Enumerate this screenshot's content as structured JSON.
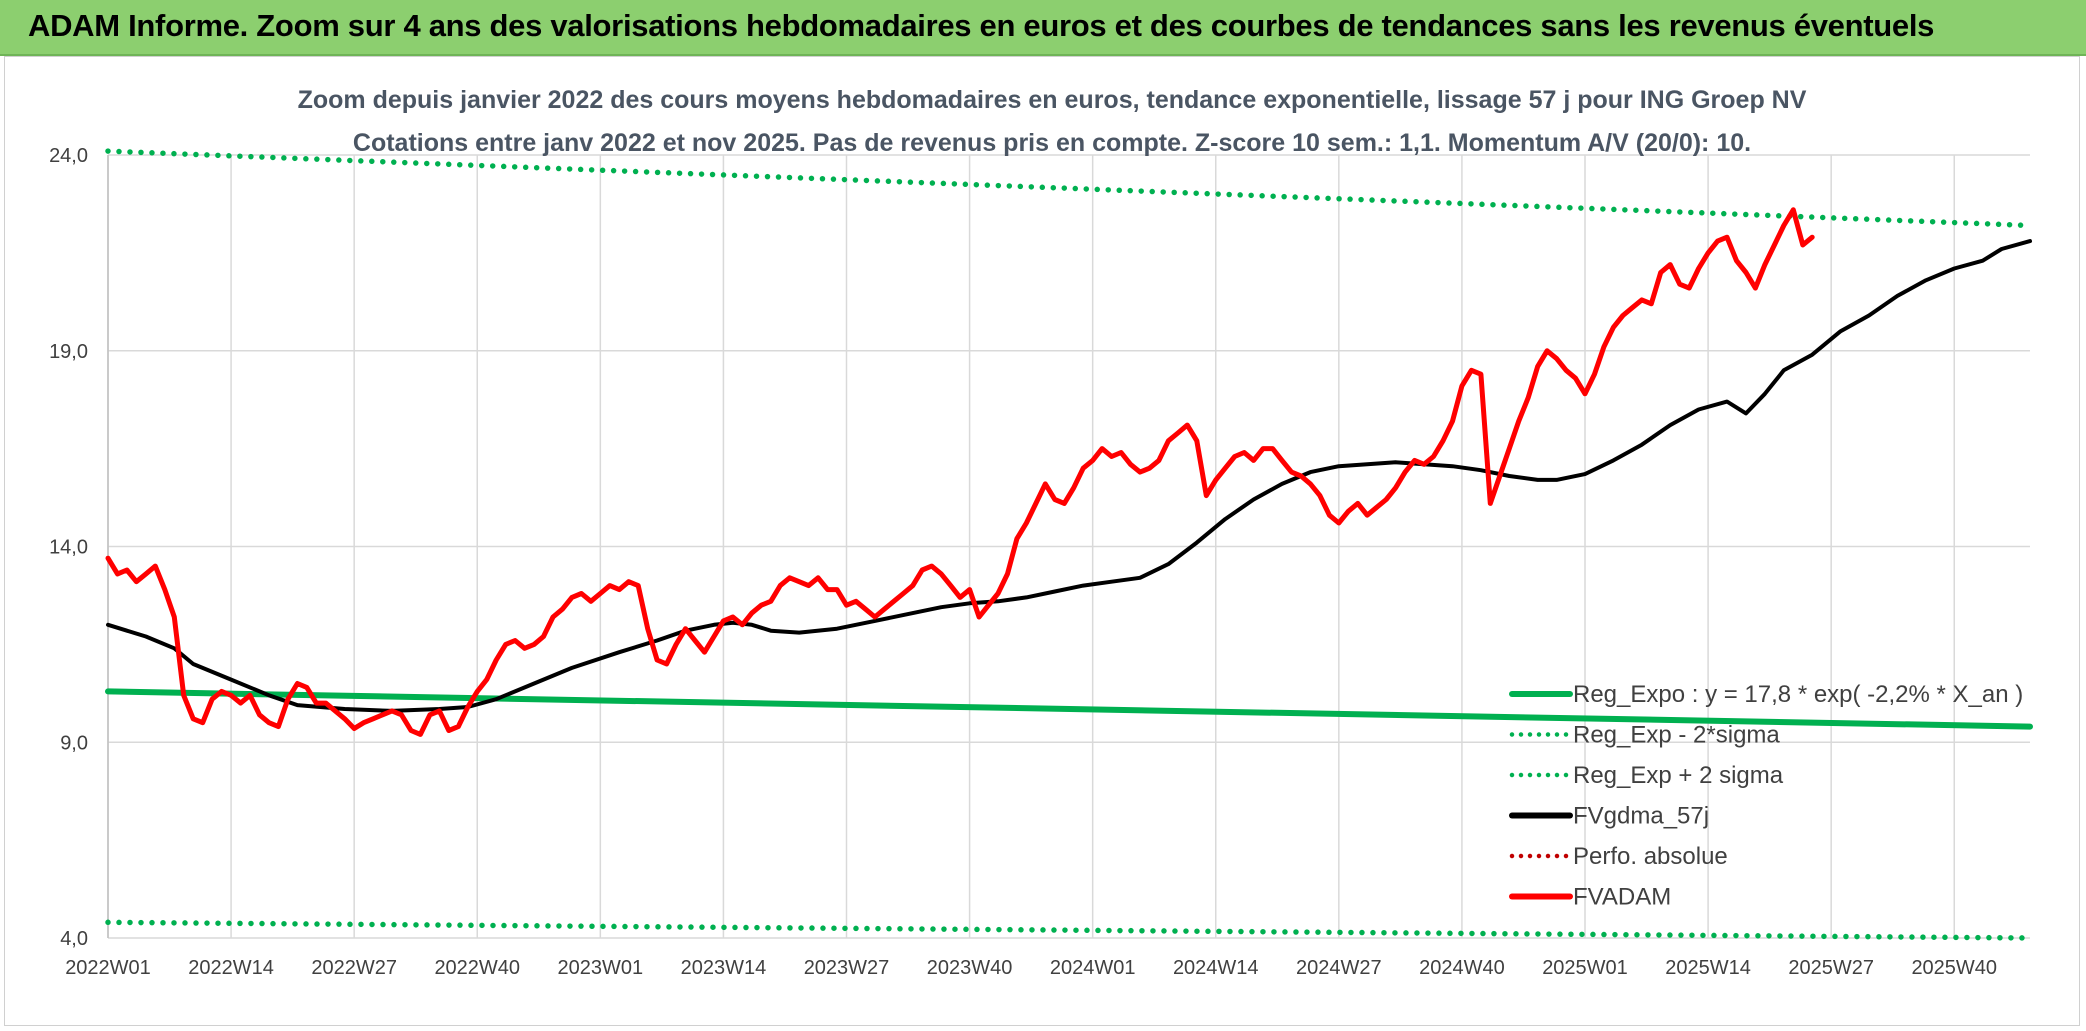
{
  "banner": {
    "title": "ADAM Informe. Zoom sur 4 ans des valorisations hebdomadaires en euros et des courbes de tendances sans les revenus éventuels"
  },
  "colors": {
    "banner_bg": "#8ccf6f",
    "reg_expo": "#00b050",
    "sigma": "#00b050",
    "fvgdma": "#000000",
    "perfo": "#c00000",
    "fvadam": "#ff0000"
  },
  "chart_data": {
    "type": "line",
    "title": "Zoom depuis janvier 2022 des cours moyens hebdomadaires en euros, tendance exponentielle, lissage 57 j pour ING Groep NV",
    "subtitle": "Cotations entre janv 2022 et nov 2025. Pas de revenus pris en compte. Z-score 10 sem.: 1,1. Momentum A/V (20/0): 10.",
    "xlabel": "",
    "ylabel": "",
    "ylim": [
      4,
      24
    ],
    "yticks": [
      4,
      9,
      14,
      19,
      24
    ],
    "ytick_labels": [
      "4,0",
      "9,0",
      "14,0",
      "19,0",
      "24,0"
    ],
    "n_weeks": 204,
    "xtick_index": [
      0,
      13,
      26,
      39,
      52,
      65,
      78,
      91,
      104,
      117,
      130,
      143,
      156,
      169,
      182,
      195
    ],
    "xtick_labels": [
      "2022W01",
      "2022W14",
      "2022W27",
      "2022W40",
      "2023W01",
      "2023W14",
      "2023W27",
      "2023W40",
      "2024W01",
      "2024W14",
      "2024W27",
      "2024W40",
      "2025W01",
      "2025W14",
      "2025W27",
      "2025W40"
    ],
    "legend": [
      {
        "label": "Reg_Expo : y = 17,8 * exp( -2,2% *  X_an )",
        "style": "solid",
        "color": "#00b050"
      },
      {
        "label": "Reg_Exp - 2*sigma",
        "style": "dotted",
        "color": "#00b050"
      },
      {
        "label": "Reg_Exp + 2 sigma",
        "style": "dotted",
        "color": "#00b050"
      },
      {
        "label": "FVgdma_57j",
        "style": "solid",
        "color": "#000000"
      },
      {
        "label": "Perfo. absolue",
        "style": "dotted",
        "color": "#c00000"
      },
      {
        "label": "FVADAM",
        "style": "solid",
        "color": "#ff0000"
      }
    ],
    "series": [
      {
        "name": "Reg_Expo",
        "style": "solid",
        "color": "#00b050",
        "points": [
          [
            0,
            10.3
          ],
          [
            203,
            9.4
          ]
        ]
      },
      {
        "name": "Reg_Exp - 2*sigma",
        "style": "dotted",
        "color": "#00b050",
        "points": [
          [
            0,
            4.4
          ],
          [
            203,
            4.0
          ]
        ]
      },
      {
        "name": "Reg_Exp + 2 sigma",
        "style": "dotted",
        "color": "#00b050",
        "points": [
          [
            0,
            24.1
          ],
          [
            203,
            22.2
          ]
        ]
      },
      {
        "name": "FVgdma_57j",
        "style": "solid",
        "color": "#000000",
        "points": [
          [
            0,
            12.0
          ],
          [
            4,
            11.7
          ],
          [
            7,
            11.4
          ],
          [
            9,
            11.0
          ],
          [
            13,
            10.6
          ],
          [
            17,
            10.2
          ],
          [
            20,
            9.95
          ],
          [
            25,
            9.85
          ],
          [
            30,
            9.8
          ],
          [
            35,
            9.85
          ],
          [
            38,
            9.9
          ],
          [
            41,
            10.1
          ],
          [
            45,
            10.5
          ],
          [
            49,
            10.9
          ],
          [
            54,
            11.3
          ],
          [
            58,
            11.6
          ],
          [
            61,
            11.85
          ],
          [
            64,
            12.0
          ],
          [
            66,
            12.05
          ],
          [
            68,
            12.0
          ],
          [
            70,
            11.85
          ],
          [
            73,
            11.8
          ],
          [
            77,
            11.9
          ],
          [
            81,
            12.1
          ],
          [
            85,
            12.3
          ],
          [
            88,
            12.45
          ],
          [
            91,
            12.55
          ],
          [
            94,
            12.6
          ],
          [
            97,
            12.7
          ],
          [
            100,
            12.85
          ],
          [
            103,
            13.0
          ],
          [
            106,
            13.1
          ],
          [
            109,
            13.2
          ],
          [
            112,
            13.55
          ],
          [
            115,
            14.1
          ],
          [
            118,
            14.7
          ],
          [
            121,
            15.2
          ],
          [
            124,
            15.6
          ],
          [
            127,
            15.9
          ],
          [
            130,
            16.05
          ],
          [
            133,
            16.1
          ],
          [
            136,
            16.15
          ],
          [
            139,
            16.1
          ],
          [
            142,
            16.05
          ],
          [
            145,
            15.95
          ],
          [
            148,
            15.8
          ],
          [
            151,
            15.7
          ],
          [
            153,
            15.7
          ],
          [
            156,
            15.85
          ],
          [
            159,
            16.2
          ],
          [
            162,
            16.6
          ],
          [
            165,
            17.1
          ],
          [
            168,
            17.5
          ],
          [
            171,
            17.7
          ],
          [
            173,
            17.4
          ],
          [
            175,
            17.9
          ],
          [
            177,
            18.5
          ],
          [
            180,
            18.9
          ],
          [
            183,
            19.5
          ],
          [
            186,
            19.9
          ],
          [
            189,
            20.4
          ],
          [
            192,
            20.8
          ],
          [
            195,
            21.1
          ],
          [
            198,
            21.3
          ],
          [
            200,
            21.6
          ],
          [
            203,
            21.8
          ]
        ]
      },
      {
        "name": "FVADAM",
        "style": "solid",
        "color": "#ff0000",
        "points": [
          [
            0,
            13.7
          ],
          [
            1,
            13.3
          ],
          [
            2,
            13.4
          ],
          [
            3,
            13.1
          ],
          [
            4,
            13.3
          ],
          [
            5,
            13.5
          ],
          [
            6,
            12.9
          ],
          [
            7,
            12.2
          ],
          [
            8,
            10.2
          ],
          [
            9,
            9.6
          ],
          [
            10,
            9.5
          ],
          [
            11,
            10.1
          ],
          [
            12,
            10.3
          ],
          [
            13,
            10.2
          ],
          [
            14,
            10.0
          ],
          [
            15,
            10.2
          ],
          [
            16,
            9.7
          ],
          [
            17,
            9.5
          ],
          [
            18,
            9.4
          ],
          [
            19,
            10.1
          ],
          [
            20,
            10.5
          ],
          [
            21,
            10.4
          ],
          [
            22,
            10.0
          ],
          [
            23,
            10.0
          ],
          [
            24,
            9.8
          ],
          [
            25,
            9.6
          ],
          [
            26,
            9.35
          ],
          [
            27,
            9.5
          ],
          [
            28,
            9.6
          ],
          [
            29,
            9.7
          ],
          [
            30,
            9.8
          ],
          [
            31,
            9.7
          ],
          [
            32,
            9.3
          ],
          [
            33,
            9.2
          ],
          [
            34,
            9.7
          ],
          [
            35,
            9.8
          ],
          [
            36,
            9.3
          ],
          [
            37,
            9.4
          ],
          [
            38,
            9.9
          ],
          [
            39,
            10.3
          ],
          [
            40,
            10.6
          ],
          [
            41,
            11.1
          ],
          [
            42,
            11.5
          ],
          [
            43,
            11.6
          ],
          [
            44,
            11.4
          ],
          [
            45,
            11.5
          ],
          [
            46,
            11.7
          ],
          [
            47,
            12.2
          ],
          [
            48,
            12.4
          ],
          [
            49,
            12.7
          ],
          [
            50,
            12.8
          ],
          [
            51,
            12.6
          ],
          [
            52,
            12.8
          ],
          [
            53,
            13.0
          ],
          [
            54,
            12.9
          ],
          [
            55,
            13.1
          ],
          [
            56,
            13.0
          ],
          [
            57,
            11.9
          ],
          [
            58,
            11.1
          ],
          [
            59,
            11.0
          ],
          [
            60,
            11.5
          ],
          [
            61,
            11.9
          ],
          [
            62,
            11.6
          ],
          [
            63,
            11.3
          ],
          [
            64,
            11.7
          ],
          [
            65,
            12.1
          ],
          [
            66,
            12.2
          ],
          [
            67,
            12.0
          ],
          [
            68,
            12.3
          ],
          [
            69,
            12.5
          ],
          [
            70,
            12.6
          ],
          [
            71,
            13.0
          ],
          [
            72,
            13.2
          ],
          [
            73,
            13.1
          ],
          [
            74,
            13.0
          ],
          [
            75,
            13.2
          ],
          [
            76,
            12.9
          ],
          [
            77,
            12.9
          ],
          [
            78,
            12.5
          ],
          [
            79,
            12.6
          ],
          [
            80,
            12.4
          ],
          [
            81,
            12.2
          ],
          [
            82,
            12.4
          ],
          [
            83,
            12.6
          ],
          [
            84,
            12.8
          ],
          [
            85,
            13.0
          ],
          [
            86,
            13.4
          ],
          [
            87,
            13.5
          ],
          [
            88,
            13.3
          ],
          [
            89,
            13.0
          ],
          [
            90,
            12.7
          ],
          [
            91,
            12.9
          ],
          [
            92,
            12.2
          ],
          [
            93,
            12.5
          ],
          [
            94,
            12.8
          ],
          [
            95,
            13.3
          ],
          [
            96,
            14.2
          ],
          [
            97,
            14.6
          ],
          [
            98,
            15.1
          ],
          [
            99,
            15.6
          ],
          [
            100,
            15.2
          ],
          [
            101,
            15.1
          ],
          [
            102,
            15.5
          ],
          [
            103,
            16.0
          ],
          [
            104,
            16.2
          ],
          [
            105,
            16.5
          ],
          [
            106,
            16.3
          ],
          [
            107,
            16.4
          ],
          [
            108,
            16.1
          ],
          [
            109,
            15.9
          ],
          [
            110,
            16.0
          ],
          [
            111,
            16.2
          ],
          [
            112,
            16.7
          ],
          [
            113,
            16.9
          ],
          [
            114,
            17.1
          ],
          [
            115,
            16.7
          ],
          [
            116,
            15.3
          ],
          [
            117,
            15.7
          ],
          [
            118,
            16.0
          ],
          [
            119,
            16.3
          ],
          [
            120,
            16.4
          ],
          [
            121,
            16.2
          ],
          [
            122,
            16.5
          ],
          [
            123,
            16.5
          ],
          [
            124,
            16.2
          ],
          [
            125,
            15.9
          ],
          [
            126,
            15.8
          ],
          [
            127,
            15.6
          ],
          [
            128,
            15.3
          ],
          [
            129,
            14.8
          ],
          [
            130,
            14.6
          ],
          [
            131,
            14.9
          ],
          [
            132,
            15.1
          ],
          [
            133,
            14.8
          ],
          [
            134,
            15.0
          ],
          [
            135,
            15.2
          ],
          [
            136,
            15.5
          ],
          [
            137,
            15.9
          ],
          [
            138,
            16.2
          ],
          [
            139,
            16.1
          ],
          [
            140,
            16.3
          ],
          [
            141,
            16.7
          ],
          [
            142,
            17.2
          ],
          [
            143,
            18.1
          ],
          [
            144,
            18.5
          ],
          [
            145,
            18.4
          ],
          [
            146,
            15.1
          ],
          [
            147,
            15.8
          ],
          [
            148,
            16.5
          ],
          [
            149,
            17.2
          ],
          [
            150,
            17.8
          ],
          [
            151,
            18.6
          ],
          [
            152,
            19.0
          ],
          [
            153,
            18.8
          ],
          [
            154,
            18.5
          ],
          [
            155,
            18.3
          ],
          [
            156,
            17.9
          ],
          [
            157,
            18.4
          ],
          [
            158,
            19.1
          ],
          [
            159,
            19.6
          ],
          [
            160,
            19.9
          ],
          [
            161,
            20.1
          ],
          [
            162,
            20.3
          ],
          [
            163,
            20.2
          ],
          [
            164,
            21.0
          ],
          [
            165,
            21.2
          ],
          [
            166,
            20.7
          ],
          [
            167,
            20.6
          ],
          [
            168,
            21.1
          ],
          [
            169,
            21.5
          ],
          [
            170,
            21.8
          ],
          [
            171,
            21.9
          ],
          [
            172,
            21.3
          ],
          [
            173,
            21.0
          ],
          [
            174,
            20.6
          ],
          [
            175,
            21.2
          ],
          [
            176,
            21.7
          ],
          [
            177,
            22.2
          ],
          [
            178,
            22.6
          ],
          [
            179,
            21.7
          ],
          [
            180,
            21.9
          ]
        ]
      }
    ]
  }
}
